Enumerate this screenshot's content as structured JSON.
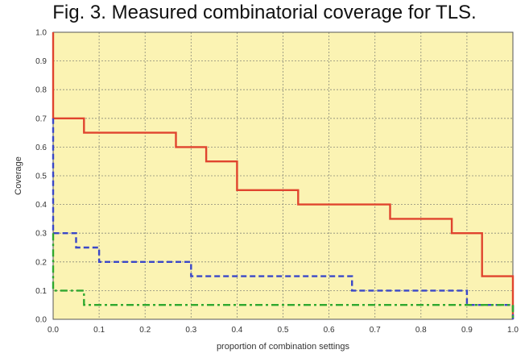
{
  "figure_title": "Fig. 3. Measured combinatorial coverage for TLS.",
  "chart_data": {
    "type": "line",
    "xlabel": "proportion of combination settings",
    "ylabel": "Coverage",
    "xlim": [
      0,
      1.0
    ],
    "ylim": [
      0,
      1.0
    ],
    "x_ticks": [
      "0.0",
      "0.1",
      "0.2",
      "0.3",
      "0.4",
      "0.5",
      "0.6",
      "0.7",
      "0.8",
      "0.9",
      "1.0"
    ],
    "y_ticks": [
      "0.0",
      "0.1",
      "0.2",
      "0.3",
      "0.4",
      "0.5",
      "0.6",
      "0.7",
      "0.8",
      "0.9",
      "1.0"
    ],
    "grid": true,
    "background": "#fbf3b3",
    "series": [
      {
        "color": "#e0442e",
        "style": "solid",
        "points": [
          [
            0,
            1.0
          ],
          [
            0,
            0.7
          ],
          [
            0.067,
            0.7
          ],
          [
            0.067,
            0.65
          ],
          [
            0.267,
            0.65
          ],
          [
            0.267,
            0.6
          ],
          [
            0.333,
            0.6
          ],
          [
            0.333,
            0.55
          ],
          [
            0.4,
            0.55
          ],
          [
            0.4,
            0.45
          ],
          [
            0.533,
            0.45
          ],
          [
            0.533,
            0.4
          ],
          [
            0.733,
            0.4
          ],
          [
            0.733,
            0.35
          ],
          [
            0.867,
            0.35
          ],
          [
            0.867,
            0.3
          ],
          [
            0.933,
            0.3
          ],
          [
            0.933,
            0.15
          ],
          [
            1.0,
            0.15
          ],
          [
            1.0,
            0.0
          ]
        ]
      },
      {
        "color": "#3a47c8",
        "style": "dashed",
        "points": [
          [
            0,
            0.7
          ],
          [
            0,
            0.3
          ],
          [
            0.05,
            0.3
          ],
          [
            0.05,
            0.25
          ],
          [
            0.1,
            0.25
          ],
          [
            0.1,
            0.2
          ],
          [
            0.3,
            0.2
          ],
          [
            0.3,
            0.15
          ],
          [
            0.65,
            0.15
          ],
          [
            0.65,
            0.1
          ],
          [
            0.9,
            0.1
          ],
          [
            0.9,
            0.05
          ],
          [
            1.0,
            0.05
          ],
          [
            1.0,
            0.0
          ]
        ]
      },
      {
        "color": "#2fa82f",
        "style": "dashdot",
        "points": [
          [
            0,
            0.3
          ],
          [
            0,
            0.1
          ],
          [
            0.067,
            0.1
          ],
          [
            0.067,
            0.05
          ],
          [
            1.0,
            0.05
          ],
          [
            1.0,
            0.0
          ]
        ]
      }
    ]
  }
}
